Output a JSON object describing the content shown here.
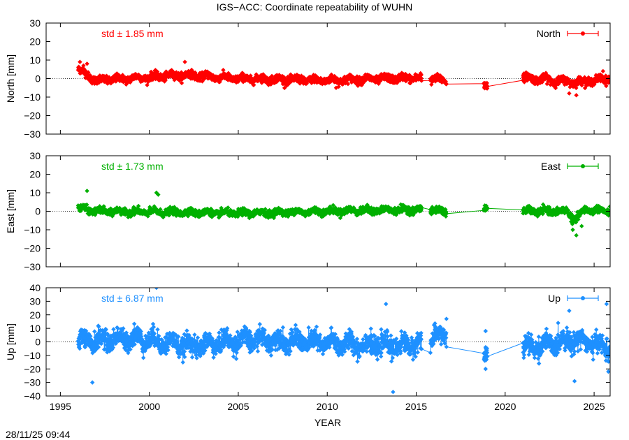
{
  "title": "IGS−ACC: Coordinate repeatability of WUHN",
  "timestamp": "28/11/25 09:44",
  "chart_data": {
    "type": "scatter",
    "title": "IGS−ACC: Coordinate repeatability of WUHN",
    "xlabel": "YEAR",
    "xlim": [
      1994.2,
      2025.9
    ],
    "x_ticks": [
      "1995",
      "2000",
      "2005",
      "2010",
      "2015",
      "2020",
      "2025"
    ],
    "x_tick_values": [
      1995,
      2000,
      2005,
      2010,
      2015,
      2020,
      2025
    ],
    "grid": false,
    "legend_position": "top-right",
    "zero_line": "dotted",
    "panels": [
      {
        "name": "North",
        "ylabel": "North [mm]",
        "ylim": [
          -30,
          30
        ],
        "y_ticks": [
          30,
          20,
          10,
          0,
          -10,
          -20,
          -30
        ],
        "y_tick_labels": [
          "30",
          "20",
          "10",
          "0",
          "−10",
          "−20",
          "−30"
        ],
        "color": "#ff0000",
        "std_label": "std ± 1.85 mm",
        "legend_label": "North",
        "spread": 1.85,
        "segments": [
          [
            1996.0,
            1996.7
          ],
          [
            1996.7,
            2015.3
          ],
          [
            2015.8,
            2016.7
          ],
          [
            2018.8,
            2019.0
          ],
          [
            2021.0,
            2025.9
          ]
        ],
        "trend": [
          [
            1996.0,
            5
          ],
          [
            1996.5,
            2
          ],
          [
            1997.0,
            -1
          ],
          [
            2002.0,
            2
          ],
          [
            2005.0,
            0
          ],
          [
            2010.0,
            -1
          ],
          [
            2015.0,
            0.5
          ],
          [
            2016.6,
            -1
          ],
          [
            2018.9,
            -3
          ],
          [
            2021.0,
            0.5
          ],
          [
            2024.0,
            -2
          ],
          [
            2025.9,
            0
          ]
        ],
        "points": [
          [
            1996.1,
            9
          ],
          [
            1996.3,
            7
          ],
          [
            1996.5,
            8
          ],
          [
            2002.0,
            9
          ],
          [
            2010.5,
            -5
          ],
          [
            2024.0,
            -9
          ],
          [
            2023.6,
            -8
          ],
          [
            2025.5,
            4
          ]
        ]
      },
      {
        "name": "East",
        "ylabel": "East [mm]",
        "ylim": [
          -30,
          30
        ],
        "y_ticks": [
          30,
          20,
          10,
          0,
          -10,
          -20,
          -30
        ],
        "y_tick_labels": [
          "30",
          "20",
          "10",
          "0",
          "−10",
          "−20",
          "−30"
        ],
        "color": "#00b000",
        "std_label": "std ± 1.73 mm",
        "legend_label": "East",
        "spread": 1.6,
        "segments": [
          [
            1996.0,
            2015.3
          ],
          [
            2015.8,
            2016.7
          ],
          [
            2018.8,
            2019.0
          ],
          [
            2021.0,
            2025.9
          ]
        ],
        "trend": [
          [
            1996.0,
            2
          ],
          [
            1997.0,
            0
          ],
          [
            2005.0,
            -1
          ],
          [
            2010.0,
            0
          ],
          [
            2015.0,
            1
          ],
          [
            2016.6,
            0
          ],
          [
            2018.9,
            2
          ],
          [
            2021.0,
            0
          ],
          [
            2023.5,
            0
          ],
          [
            2023.9,
            -5
          ],
          [
            2024.5,
            1
          ],
          [
            2025.9,
            0
          ]
        ],
        "points": [
          [
            1996.5,
            11
          ],
          [
            2000.4,
            10
          ],
          [
            2000.5,
            9
          ],
          [
            2024.0,
            -13
          ],
          [
            2023.8,
            -10
          ],
          [
            2024.3,
            -8
          ],
          [
            2016.3,
            2.5
          ]
        ]
      },
      {
        "name": "Up",
        "ylabel": "Up [mm]",
        "ylim": [
          -40,
          40
        ],
        "y_ticks": [
          40,
          30,
          20,
          10,
          0,
          -10,
          -20,
          -30,
          -40
        ],
        "y_tick_labels": [
          "40",
          "30",
          "20",
          "10",
          "0",
          "−10",
          "−20",
          "−30",
          "−40"
        ],
        "color": "#1e90ff",
        "std_label": "std ± 6.87 mm",
        "legend_label": "Up",
        "spread": 6.5,
        "segments": [
          [
            1996.0,
            2015.3
          ],
          [
            2015.8,
            2016.7
          ],
          [
            2018.8,
            2019.0
          ],
          [
            2021.0,
            2025.9
          ]
        ],
        "trend": [
          [
            1996.0,
            0
          ],
          [
            1999.0,
            3
          ],
          [
            2002.5,
            -3
          ],
          [
            2005.5,
            2
          ],
          [
            2009.0,
            0
          ],
          [
            2012.0,
            -2
          ],
          [
            2014.5,
            -3
          ],
          [
            2016.5,
            5
          ],
          [
            2018.9,
            -8
          ],
          [
            2021.0,
            -5
          ],
          [
            2024.0,
            2
          ],
          [
            2025.9,
            -5
          ]
        ],
        "points": [
          [
            2000.4,
            40
          ],
          [
            2013.3,
            28
          ],
          [
            2013.7,
            -37
          ],
          [
            2016.7,
            17
          ],
          [
            2018.9,
            8
          ],
          [
            2018.9,
            -20
          ],
          [
            2025.7,
            28
          ],
          [
            2023.9,
            -29
          ],
          [
            1996.8,
            -30
          ],
          [
            2023.6,
            23
          ],
          [
            2025.8,
            -22
          ]
        ]
      }
    ]
  }
}
